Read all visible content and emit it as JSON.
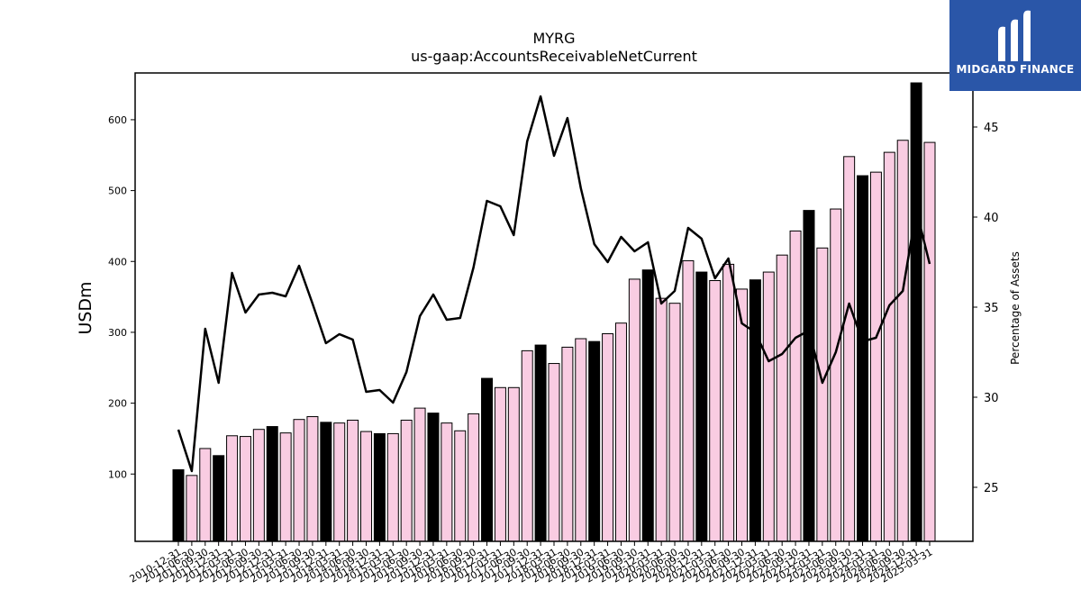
{
  "chart_data": {
    "type": "bar",
    "title": "MYRG",
    "subtitle": "us-gaap:AccountsReceivableNetCurrent",
    "ylabel": "USDm",
    "y2label": "Percentage of Assets",
    "ylim": [
      5,
      666
    ],
    "y2lim": [
      22,
      48
    ],
    "yticks": [
      100,
      200,
      300,
      400,
      500,
      600
    ],
    "y2ticks": [
      25,
      30,
      35,
      40,
      45
    ],
    "categories": [
      "2010-12-31",
      "2011-06-30",
      "2011-09-30",
      "2011-12-31",
      "2012-03-31",
      "2012-06-30",
      "2012-09-30",
      "2012-12-31",
      "2013-03-31",
      "2013-06-30",
      "2013-09-30",
      "2013-12-31",
      "2014-03-31",
      "2014-06-30",
      "2014-09-30",
      "2014-12-31",
      "2015-03-31",
      "2015-06-30",
      "2015-09-30",
      "2015-12-31",
      "2016-03-31",
      "2016-06-30",
      "2016-09-30",
      "2016-12-31",
      "2017-03-31",
      "2017-06-30",
      "2017-09-30",
      "2017-12-31",
      "2018-03-31",
      "2018-06-30",
      "2018-09-30",
      "2018-12-31",
      "2019-03-31",
      "2019-06-30",
      "2019-09-30",
      "2019-12-31",
      "2020-03-31",
      "2020-06-30",
      "2020-09-30",
      "2020-12-31",
      "2021-03-31",
      "2021-06-30",
      "2021-09-30",
      "2021-12-31",
      "2022-03-31",
      "2022-06-30",
      "2022-09-30",
      "2022-12-31",
      "2023-03-31",
      "2023-06-30",
      "2023-09-30",
      "2023-12-31",
      "2024-03-31",
      "2024-06-30",
      "2024-09-30",
      "2024-12-31",
      "2025-03-31"
    ],
    "series": [
      {
        "kind": "bar",
        "values": [
          106,
          98,
          136,
          126,
          154,
          153,
          163,
          167,
          158,
          177,
          181,
          173,
          172,
          176,
          160,
          157,
          157,
          176,
          193,
          186,
          172,
          161,
          185,
          235,
          222,
          222,
          274,
          282,
          256,
          279,
          291,
          287,
          298,
          313,
          375,
          388,
          348,
          341,
          401,
          385,
          373,
          396,
          361,
          374,
          385,
          409,
          443,
          472,
          419,
          474,
          548,
          521,
          526,
          554,
          571,
          652,
          568
        ],
        "year_end": [
          true,
          false,
          false,
          true,
          false,
          false,
          false,
          true,
          false,
          false,
          false,
          true,
          false,
          false,
          false,
          true,
          false,
          false,
          false,
          true,
          false,
          false,
          false,
          true,
          false,
          false,
          false,
          true,
          false,
          false,
          false,
          true,
          false,
          false,
          false,
          true,
          false,
          false,
          false,
          true,
          false,
          false,
          false,
          true,
          false,
          false,
          false,
          true,
          false,
          false,
          false,
          true,
          false,
          false,
          false,
          true,
          false
        ]
      },
      {
        "kind": "line",
        "axis": "right",
        "values": [
          28.2,
          25.9,
          33.8,
          30.8,
          36.9,
          34.7,
          35.7,
          35.8,
          35.6,
          37.3,
          35.2,
          33.0,
          33.5,
          33.2,
          30.3,
          30.4,
          29.7,
          31.4,
          34.5,
          35.7,
          34.3,
          34.4,
          37.2,
          40.9,
          40.6,
          39.0,
          44.2,
          46.7,
          43.4,
          45.5,
          41.6,
          38.5,
          37.5,
          38.9,
          38.1,
          38.6,
          35.2,
          35.9,
          39.4,
          38.8,
          36.6,
          37.7,
          34.1,
          33.6,
          32.0,
          32.4,
          33.3,
          33.7,
          30.8,
          32.5,
          35.2,
          33.1,
          33.3,
          35.1,
          35.9,
          40.4,
          37.4
        ]
      }
    ],
    "colors": {
      "bar_year_end": "#000000",
      "bar_quarter": "#f9cce2",
      "bar_edge": "#000000",
      "line": "#000000"
    },
    "grid": false
  },
  "logo": {
    "text": "MIDGARD FINANCE"
  }
}
